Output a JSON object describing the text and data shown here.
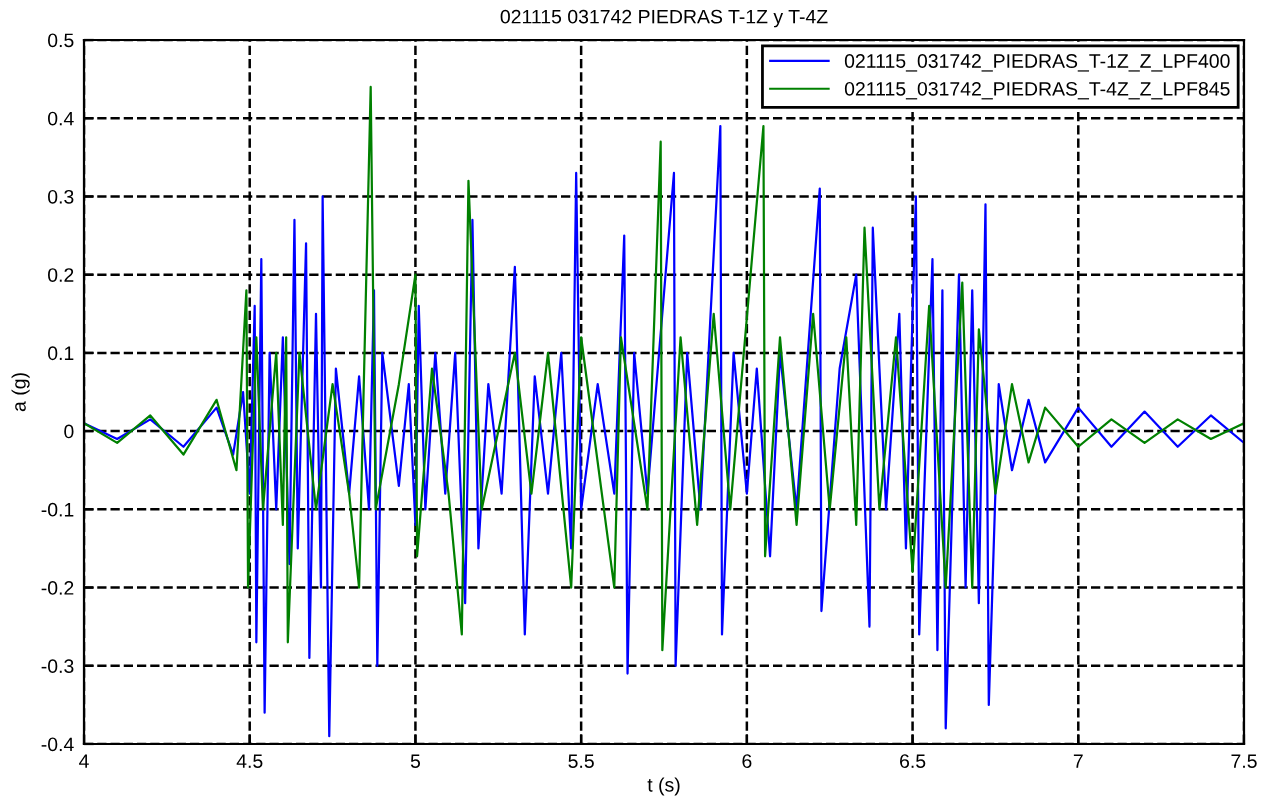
{
  "chart_data": {
    "type": "line",
    "title": "021115 031742 PIEDRAS T-1Z y T-4Z",
    "xlabel": "t (s)",
    "ylabel": "a (g)",
    "xlim": [
      4,
      7.5
    ],
    "xticks": [
      4,
      4.5,
      5,
      5.5,
      6,
      6.5,
      7,
      7.5
    ],
    "ylim": [
      -0.4,
      0.5
    ],
    "yticks": [
      -0.4,
      -0.3,
      -0.2,
      -0.1,
      0,
      0.1,
      0.2,
      0.3,
      0.4,
      0.5
    ],
    "grid": true,
    "legend": "top right",
    "line_style": "solid",
    "marker": "none",
    "series": [
      {
        "name": "021115_031742_PIEDRAS_T-1Z_Z_LPF400",
        "color": "#0000ff",
        "x": [
          4.0,
          4.1,
          4.2,
          4.3,
          4.4,
          4.45,
          4.48,
          4.5,
          4.515,
          4.52,
          4.535,
          4.545,
          4.56,
          4.58,
          4.6,
          4.62,
          4.635,
          4.645,
          4.67,
          4.68,
          4.7,
          4.715,
          4.72,
          4.74,
          4.76,
          4.8,
          4.83,
          4.86,
          4.875,
          4.885,
          4.9,
          4.95,
          4.98,
          5.0,
          5.01,
          5.03,
          5.06,
          5.09,
          5.12,
          5.15,
          5.172,
          5.19,
          5.22,
          5.26,
          5.3,
          5.33,
          5.36,
          5.4,
          5.44,
          5.47,
          5.485,
          5.5,
          5.55,
          5.6,
          5.63,
          5.64,
          5.66,
          5.7,
          5.78,
          5.785,
          5.82,
          5.86,
          5.92,
          5.925,
          5.96,
          6.0,
          6.03,
          6.07,
          6.1,
          6.15,
          6.22,
          6.225,
          6.28,
          6.33,
          6.37,
          6.38,
          6.42,
          6.46,
          6.48,
          6.51,
          6.52,
          6.56,
          6.575,
          6.59,
          6.6,
          6.64,
          6.66,
          6.68,
          6.7,
          6.72,
          6.73,
          6.76,
          6.8,
          6.85,
          6.9,
          7.0,
          7.1,
          7.2,
          7.3,
          7.4,
          7.5
        ],
        "values": [
          0.01,
          -0.01,
          0.015,
          -0.02,
          0.03,
          -0.03,
          0.05,
          -0.08,
          0.16,
          -0.27,
          0.22,
          -0.36,
          0.1,
          -0.1,
          0.12,
          -0.17,
          0.27,
          -0.15,
          0.24,
          -0.29,
          0.15,
          -0.2,
          0.3,
          -0.39,
          0.08,
          -0.08,
          0.07,
          -0.1,
          0.18,
          -0.3,
          0.1,
          -0.07,
          0.06,
          -0.12,
          0.16,
          -0.1,
          0.1,
          -0.08,
          0.1,
          -0.22,
          0.27,
          -0.15,
          0.06,
          -0.08,
          0.21,
          -0.26,
          0.07,
          -0.08,
          0.1,
          -0.15,
          0.33,
          -0.1,
          0.06,
          -0.08,
          0.25,
          -0.31,
          0.1,
          -0.08,
          0.33,
          -0.3,
          0.1,
          -0.1,
          0.39,
          -0.26,
          0.1,
          -0.08,
          0.08,
          -0.16,
          0.1,
          -0.1,
          0.31,
          -0.23,
          0.08,
          0.2,
          -0.25,
          0.26,
          -0.1,
          0.15,
          -0.15,
          0.3,
          -0.26,
          0.22,
          -0.28,
          0.18,
          -0.38,
          0.2,
          -0.2,
          0.18,
          -0.22,
          0.29,
          -0.35,
          0.06,
          -0.05,
          0.04,
          -0.04,
          0.03,
          -0.02,
          0.025,
          -0.02,
          0.02,
          -0.015
        ]
      },
      {
        "name": "021115_031742_PIEDRAS_T-4Z_Z_LPF845",
        "color": "#008000",
        "x": [
          4.0,
          4.1,
          4.2,
          4.3,
          4.4,
          4.46,
          4.49,
          4.495,
          4.52,
          4.54,
          4.58,
          4.6,
          4.61,
          4.615,
          4.65,
          4.7,
          4.75,
          4.8,
          4.83,
          4.865,
          4.88,
          4.95,
          5.0,
          5.005,
          5.05,
          5.1,
          5.14,
          5.16,
          5.2,
          5.3,
          5.35,
          5.4,
          5.47,
          5.5,
          5.6,
          5.62,
          5.7,
          5.74,
          5.745,
          5.8,
          5.85,
          5.9,
          5.95,
          6.05,
          6.055,
          6.1,
          6.15,
          6.2,
          6.25,
          6.3,
          6.33,
          6.355,
          6.4,
          6.45,
          6.5,
          6.55,
          6.6,
          6.65,
          6.68,
          6.7,
          6.75,
          6.8,
          6.85,
          6.9,
          7.0,
          7.1,
          7.2,
          7.3,
          7.4,
          7.5
        ],
        "values": [
          0.01,
          -0.015,
          0.02,
          -0.03,
          0.04,
          -0.05,
          0.18,
          -0.2,
          0.12,
          -0.1,
          0.1,
          -0.12,
          0.12,
          -0.27,
          0.1,
          -0.1,
          0.06,
          -0.08,
          -0.2,
          0.44,
          -0.1,
          0.06,
          0.2,
          -0.16,
          0.08,
          -0.08,
          -0.26,
          0.32,
          -0.1,
          0.1,
          -0.08,
          0.1,
          -0.2,
          0.12,
          -0.2,
          0.12,
          -0.1,
          0.37,
          -0.28,
          0.12,
          -0.12,
          0.15,
          -0.1,
          0.39,
          -0.16,
          0.12,
          -0.12,
          0.15,
          -0.1,
          0.12,
          -0.12,
          0.26,
          -0.1,
          0.12,
          -0.18,
          0.16,
          -0.2,
          0.19,
          -0.2,
          0.13,
          -0.08,
          0.06,
          -0.04,
          0.03,
          -0.02,
          0.015,
          -0.015,
          0.015,
          -0.01,
          0.01
        ]
      }
    ]
  }
}
